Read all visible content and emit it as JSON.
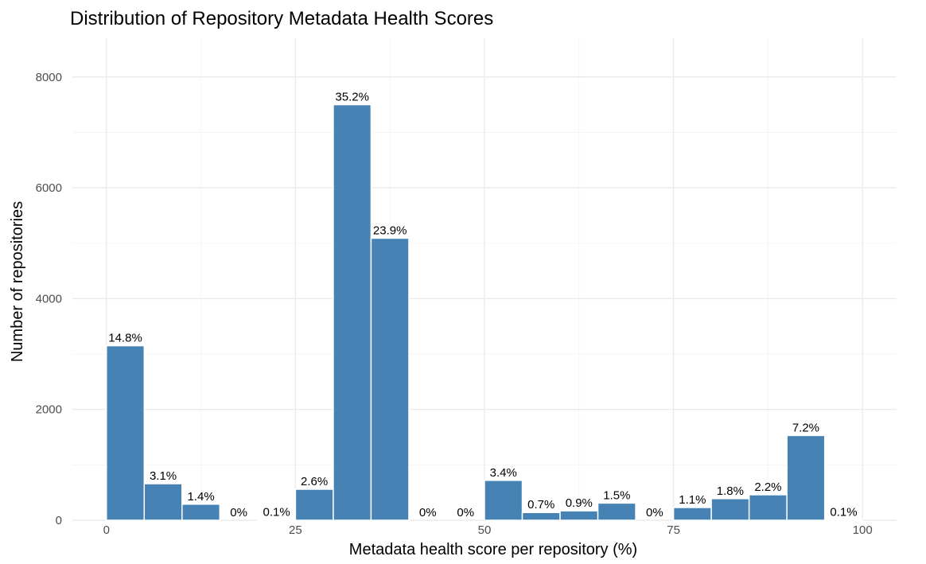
{
  "chart_data": {
    "type": "bar",
    "title": "Distribution of Repository Metadata Health Scores",
    "xlabel": "Metadata health score per repository (%)",
    "ylabel": "Number of repositories",
    "xlim": [
      -4.5,
      104.5
    ],
    "ylim": [
      0,
      8700
    ],
    "x_ticks": [
      0,
      25,
      50,
      75,
      100
    ],
    "y_ticks": [
      0,
      2000,
      4000,
      6000,
      8000
    ],
    "grid": true,
    "bar_color": "#4682b4",
    "bin_width": 5,
    "bins": [
      {
        "start": 0,
        "count": 3150,
        "label": "14.8%"
      },
      {
        "start": 5,
        "count": 660,
        "label": "3.1%"
      },
      {
        "start": 10,
        "count": 290,
        "label": "1.4%"
      },
      {
        "start": 15,
        "count": 0,
        "label": "0%"
      },
      {
        "start": 20,
        "count": 10,
        "label": "0.1%"
      },
      {
        "start": 25,
        "count": 560,
        "label": "2.6%"
      },
      {
        "start": 30,
        "count": 7500,
        "label": "35.2%"
      },
      {
        "start": 35,
        "count": 5090,
        "label": "23.9%"
      },
      {
        "start": 40,
        "count": 0,
        "label": "0%"
      },
      {
        "start": 45,
        "count": 0,
        "label": "0%"
      },
      {
        "start": 50,
        "count": 720,
        "label": "3.4%"
      },
      {
        "start": 55,
        "count": 140,
        "label": "0.7%"
      },
      {
        "start": 60,
        "count": 170,
        "label": "0.9%"
      },
      {
        "start": 65,
        "count": 310,
        "label": "1.5%"
      },
      {
        "start": 70,
        "count": 0,
        "label": "0%"
      },
      {
        "start": 75,
        "count": 230,
        "label": "1.1%"
      },
      {
        "start": 80,
        "count": 390,
        "label": "1.8%"
      },
      {
        "start": 85,
        "count": 460,
        "label": "2.2%"
      },
      {
        "start": 90,
        "count": 1530,
        "label": "7.2%"
      },
      {
        "start": 95,
        "count": 10,
        "label": "0.1%"
      }
    ]
  }
}
